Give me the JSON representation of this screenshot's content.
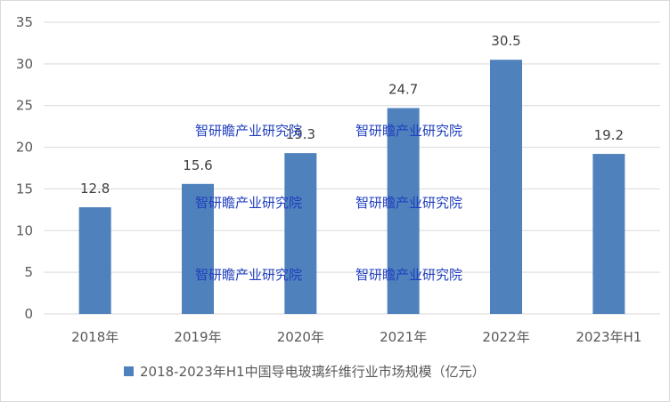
{
  "chart_data": {
    "type": "bar",
    "categories": [
      "2018年",
      "2019年",
      "2020年",
      "2021年",
      "2022年",
      "2023年H1"
    ],
    "series": [
      {
        "name": "2018-2023年H1中国导电玻璃纤维行业市场规模（亿元）",
        "values": [
          12.8,
          15.6,
          19.3,
          24.7,
          30.5,
          19.2
        ],
        "color": "#4f81bd"
      }
    ],
    "data_labels": [
      "12.8",
      "15.6",
      "19.3",
      "24.7",
      "30.5",
      "19.2"
    ],
    "ylim": [
      0,
      35
    ],
    "yticks": [
      0,
      5,
      10,
      15,
      20,
      25,
      30,
      35
    ],
    "grid": true,
    "legend_position": "bottom",
    "watermark": "智研瞻产业研究院"
  }
}
